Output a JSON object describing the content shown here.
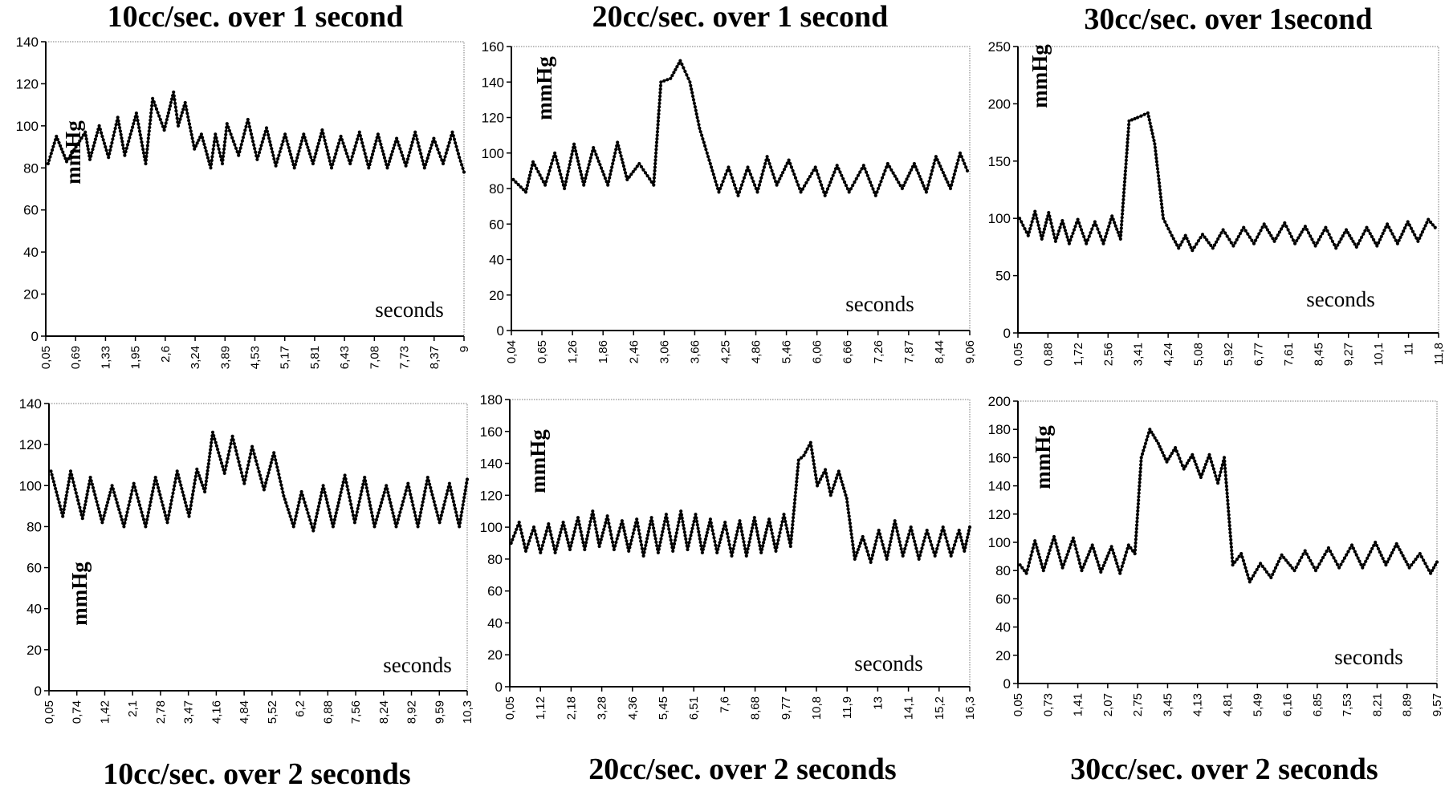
{
  "chart_data": [
    {
      "type": "line",
      "title": "10cc/sec. over 1 second",
      "ylabel": "mmHg",
      "xlabel": "seconds",
      "ylim": [
        0,
        140
      ],
      "yticks": [
        0,
        20,
        40,
        60,
        80,
        100,
        120,
        140
      ],
      "xticks": [
        "0,05",
        "0,69",
        "1,33",
        "1,95",
        "2,6",
        "3,24",
        "3,89",
        "4,53",
        "5,17",
        "5,81",
        "6,43",
        "7,08",
        "7,73",
        "8,37",
        "9"
      ],
      "grid": false,
      "series": [
        {
          "x": [
            0.05,
            0.23,
            0.45,
            0.85,
            0.95,
            1.15,
            1.35,
            1.55,
            1.7,
            1.95,
            2.15,
            2.3,
            2.55,
            2.75,
            2.85,
            3.0,
            3.2,
            3.35,
            3.55,
            3.65,
            3.8,
            3.9,
            4.15,
            4.35,
            4.55,
            4.75,
            4.95,
            5.15,
            5.35,
            5.55,
            5.75,
            5.95,
            6.15,
            6.35,
            6.55,
            6.75,
            6.95,
            7.15,
            7.35,
            7.55,
            7.75,
            7.95,
            8.15,
            8.35,
            8.55,
            8.75,
            8.9,
            9.0
          ],
          "y": [
            82,
            95,
            83,
            97,
            84,
            100,
            85,
            104,
            86,
            106,
            82,
            113,
            98,
            116,
            100,
            111,
            89,
            96,
            80,
            96,
            82,
            101,
            86,
            103,
            84,
            99,
            81,
            96,
            80,
            96,
            82,
            98,
            80,
            95,
            82,
            97,
            80,
            96,
            80,
            94,
            81,
            97,
            80,
            94,
            82,
            97,
            85,
            78
          ]
        }
      ]
    },
    {
      "type": "line",
      "title": "20cc/sec. over 1 second",
      "ylabel": "mmHg",
      "xlabel": "seconds",
      "ylim": [
        0,
        160
      ],
      "yticks": [
        0,
        20,
        40,
        60,
        80,
        100,
        120,
        140,
        160
      ],
      "xticks": [
        "0,04",
        "0,65",
        "1,26",
        "1,86",
        "2,46",
        "3,06",
        "3,66",
        "4,25",
        "4,86",
        "5,46",
        "6,06",
        "6,66",
        "7,26",
        "7,87",
        "8,44",
        "9,06"
      ],
      "grid": false,
      "series": [
        {
          "x": [
            0.04,
            0.3,
            0.45,
            0.7,
            0.9,
            1.1,
            1.3,
            1.5,
            1.7,
            2.0,
            2.2,
            2.4,
            2.65,
            2.95,
            3.1,
            3.3,
            3.5,
            3.7,
            3.9,
            4.1,
            4.3,
            4.5,
            4.7,
            4.9,
            5.1,
            5.3,
            5.5,
            5.75,
            6.0,
            6.3,
            6.5,
            6.75,
            7.0,
            7.3,
            7.55,
            7.8,
            8.1,
            8.35,
            8.6,
            8.8,
            9.1,
            9.3,
            9.45
          ],
          "y": [
            85,
            78,
            95,
            82,
            100,
            80,
            105,
            82,
            103,
            82,
            106,
            85,
            94,
            82,
            140,
            142,
            152,
            140,
            114,
            96,
            78,
            92,
            76,
            92,
            78,
            98,
            82,
            96,
            78,
            92,
            76,
            93,
            78,
            93,
            76,
            94,
            80,
            94,
            78,
            98,
            80,
            100,
            90
          ]
        }
      ]
    },
    {
      "type": "line",
      "title": "30cc/sec. over 1second",
      "ylabel": "mmHg",
      "xlabel": "seconds",
      "ylim": [
        0,
        250
      ],
      "yticks": [
        0,
        50,
        100,
        150,
        200,
        250
      ],
      "xticks": [
        "0,05",
        "0,88",
        "1,72",
        "2,56",
        "3,41",
        "4,24",
        "5,08",
        "5,92",
        "6,77",
        "7,61",
        "8,45",
        "9,27",
        "10,1",
        "11",
        "11,8"
      ],
      "grid": false,
      "series": [
        {
          "x": [
            0.05,
            0.3,
            0.5,
            0.7,
            0.9,
            1.1,
            1.3,
            1.5,
            1.75,
            2.0,
            2.25,
            2.5,
            2.75,
            3.0,
            3.25,
            3.5,
            3.8,
            4.0,
            4.25,
            4.5,
            4.7,
            4.9,
            5.1,
            5.4,
            5.7,
            6.0,
            6.3,
            6.6,
            6.9,
            7.2,
            7.5,
            7.8,
            8.1,
            8.4,
            8.7,
            9.0,
            9.3,
            9.6,
            9.9,
            10.2,
            10.5,
            10.8,
            11.1,
            11.4,
            11.7,
            12.0,
            12.2
          ],
          "y": [
            100,
            85,
            106,
            82,
            105,
            80,
            98,
            78,
            99,
            78,
            97,
            78,
            102,
            82,
            185,
            188,
            192,
            165,
            100,
            85,
            74,
            85,
            72,
            86,
            74,
            90,
            76,
            92,
            78,
            95,
            80,
            96,
            78,
            93,
            76,
            92,
            74,
            90,
            75,
            92,
            76,
            95,
            78,
            97,
            80,
            99,
            92
          ]
        }
      ]
    },
    {
      "type": "line",
      "title": "10cc/sec. over 2 seconds",
      "ylabel": "mmHg",
      "xlabel": "seconds",
      "ylim": [
        0,
        140
      ],
      "yticks": [
        0,
        20,
        40,
        60,
        80,
        100,
        120,
        140
      ],
      "xticks": [
        "0,05",
        "0,74",
        "1,42",
        "2,1",
        "2,78",
        "3,47",
        "4,16",
        "4,84",
        "5,52",
        "6,2",
        "6,88",
        "7,56",
        "8,24",
        "8,92",
        "9,59",
        "10,3"
      ],
      "grid": false,
      "series": [
        {
          "x": [
            0.05,
            0.35,
            0.55,
            0.85,
            1.05,
            1.35,
            1.6,
            1.9,
            2.15,
            2.45,
            2.7,
            3.0,
            3.25,
            3.55,
            3.75,
            3.95,
            4.15,
            4.45,
            4.65,
            4.95,
            5.15,
            5.45,
            5.7,
            5.95,
            6.2,
            6.4,
            6.7,
            6.95,
            7.2,
            7.5,
            7.75,
            8.0,
            8.25,
            8.55,
            8.8,
            9.1,
            9.35,
            9.6,
            9.9,
            10.15,
            10.4,
            10.6
          ],
          "y": [
            107,
            85,
            107,
            84,
            104,
            82,
            100,
            80,
            101,
            80,
            104,
            82,
            107,
            85,
            108,
            97,
            126,
            106,
            124,
            101,
            119,
            98,
            116,
            95,
            80,
            97,
            78,
            100,
            80,
            105,
            82,
            104,
            80,
            100,
            80,
            101,
            80,
            104,
            82,
            101,
            80,
            103
          ]
        }
      ]
    },
    {
      "type": "line",
      "title": "20cc/sec. over 2 seconds",
      "ylabel": "mmHg",
      "xlabel": "seconds",
      "ylim": [
        0,
        180
      ],
      "yticks": [
        0,
        20,
        40,
        60,
        80,
        100,
        120,
        140,
        160,
        180
      ],
      "xticks": [
        "0,05",
        "1,12",
        "2,18",
        "3,28",
        "4,36",
        "5,45",
        "6,51",
        "7,6",
        "8,68",
        "9,77",
        "10,8",
        "11,9",
        "13",
        "14,1",
        "15,2",
        "16,3"
      ],
      "grid": false,
      "series": [
        {
          "x": [
            0.05,
            0.35,
            0.6,
            0.9,
            1.15,
            1.45,
            1.7,
            2.0,
            2.25,
            2.55,
            2.8,
            3.1,
            3.35,
            3.65,
            3.9,
            4.2,
            4.45,
            4.75,
            5.0,
            5.3,
            5.55,
            5.85,
            6.1,
            6.4,
            6.65,
            6.95,
            7.2,
            7.5,
            7.75,
            8.05,
            8.3,
            8.6,
            8.85,
            9.15,
            9.4,
            9.7,
            9.95,
            10.25,
            10.5,
            10.8,
            11.0,
            11.25,
            11.5,
            11.8,
            12.0,
            12.3,
            12.6,
            12.9,
            13.2,
            13.5,
            13.8,
            14.1,
            14.4,
            14.7,
            15.0,
            15.3,
            15.6,
            15.9,
            16.2,
            16.5,
            16.8,
            17.0,
            17.2
          ],
          "y": [
            90,
            103,
            85,
            100,
            84,
            102,
            84,
            103,
            86,
            106,
            86,
            110,
            88,
            107,
            86,
            104,
            85,
            105,
            82,
            106,
            84,
            108,
            85,
            110,
            86,
            108,
            84,
            105,
            84,
            103,
            82,
            104,
            82,
            106,
            84,
            105,
            85,
            108,
            88,
            142,
            145,
            153,
            126,
            136,
            120,
            135,
            118,
            80,
            94,
            78,
            98,
            80,
            104,
            82,
            100,
            80,
            98,
            82,
            100,
            82,
            98,
            85,
            100
          ]
        }
      ]
    },
    {
      "type": "line",
      "title": "30cc/sec. over 2 seconds",
      "ylabel": "mmHg",
      "xlabel": "seconds",
      "ylim": [
        0,
        200
      ],
      "yticks": [
        0,
        20,
        40,
        60,
        80,
        100,
        120,
        140,
        160,
        180,
        200
      ],
      "xticks": [
        "0,05",
        "0,73",
        "1,41",
        "2,07",
        "2,75",
        "3,45",
        "4,13",
        "4,81",
        "5,49",
        "6,16",
        "6,85",
        "7,53",
        "8,21",
        "8,89",
        "9,57"
      ],
      "grid": false,
      "series": [
        {
          "x": [
            0.05,
            0.2,
            0.4,
            0.6,
            0.85,
            1.05,
            1.3,
            1.5,
            1.75,
            1.95,
            2.2,
            2.4,
            2.6,
            2.75,
            2.9,
            3.1,
            3.3,
            3.5,
            3.7,
            3.9,
            4.1,
            4.3,
            4.5,
            4.7,
            4.85,
            5.05,
            5.25,
            5.45,
            5.7,
            5.95,
            6.2,
            6.5,
            6.75,
            7.0,
            7.3,
            7.55,
            7.85,
            8.1,
            8.4,
            8.65,
            8.9,
            9.2,
            9.45,
            9.7,
            9.85
          ],
          "y": [
            84,
            78,
            101,
            80,
            104,
            82,
            103,
            80,
            98,
            79,
            97,
            78,
            98,
            92,
            160,
            180,
            170,
            157,
            167,
            152,
            162,
            146,
            162,
            142,
            160,
            84,
            92,
            72,
            85,
            75,
            91,
            80,
            94,
            80,
            96,
            82,
            98,
            82,
            100,
            84,
            99,
            82,
            92,
            78,
            86
          ]
        }
      ]
    }
  ]
}
